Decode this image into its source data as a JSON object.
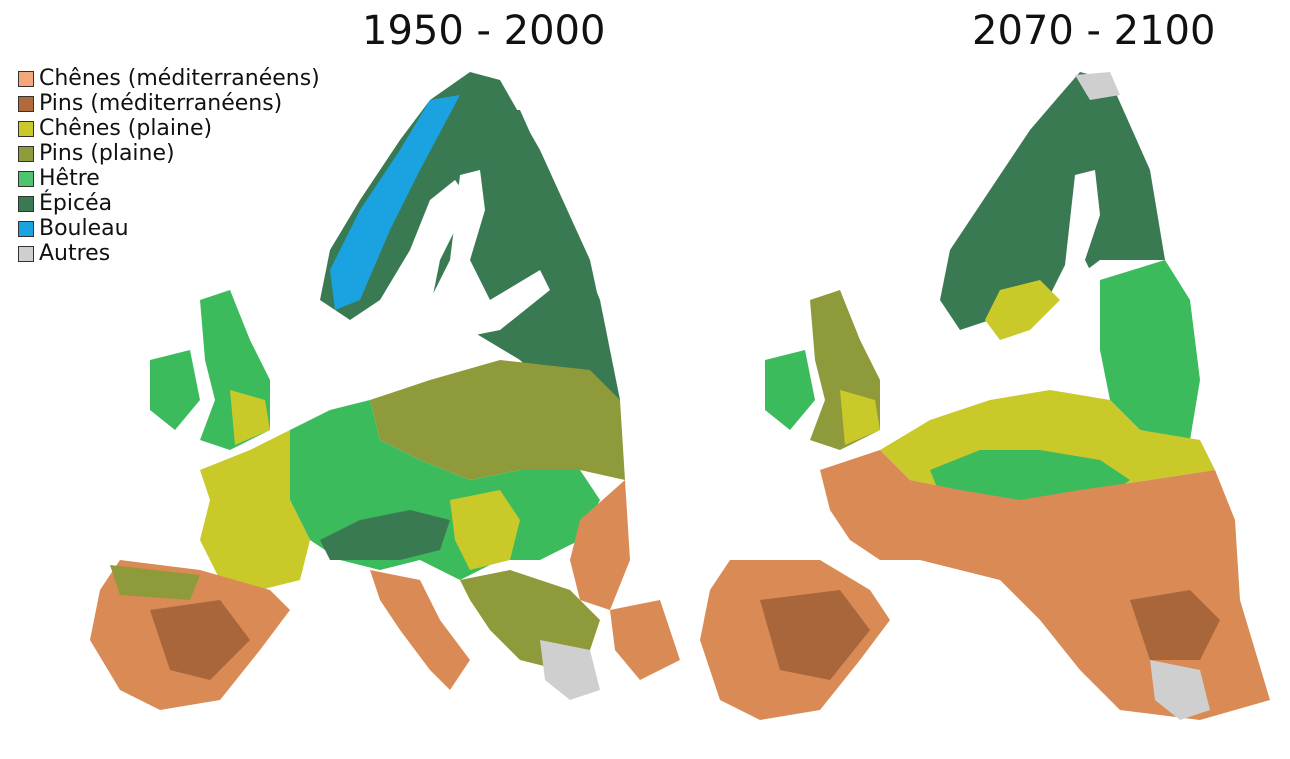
{
  "maps": [
    {
      "title": "1950 - 2000"
    },
    {
      "title": "2070 - 2100"
    }
  ],
  "legend": {
    "items": [
      {
        "label": "Chênes (méditerranéens)",
        "color": "#f4a77a"
      },
      {
        "label": "Pins (méditerranéens)",
        "color": "#b06a3b"
      },
      {
        "label": "Chênes (plaine)",
        "color": "#c9c92a"
      },
      {
        "label": "Pins (plaine)",
        "color": "#8f9a3a"
      },
      {
        "label": "Hêtre",
        "color": "#4dc46e"
      },
      {
        "label": "Épicéa",
        "color": "#3a7a52"
      },
      {
        "label": "Bouleau",
        "color": "#1aa3e0"
      },
      {
        "label": "Autres",
        "color": "#cfcfcf"
      }
    ]
  },
  "colors": {
    "mediterranean_oak": "#d98a55",
    "mediterranean_pine": "#a8663a",
    "lowland_oak": "#c9c92a",
    "lowland_pine": "#8f9a3a",
    "beech": "#3cbb5c",
    "spruce": "#3a7a52",
    "birch": "#1aa3e0",
    "other": "#c8c8c8"
  }
}
